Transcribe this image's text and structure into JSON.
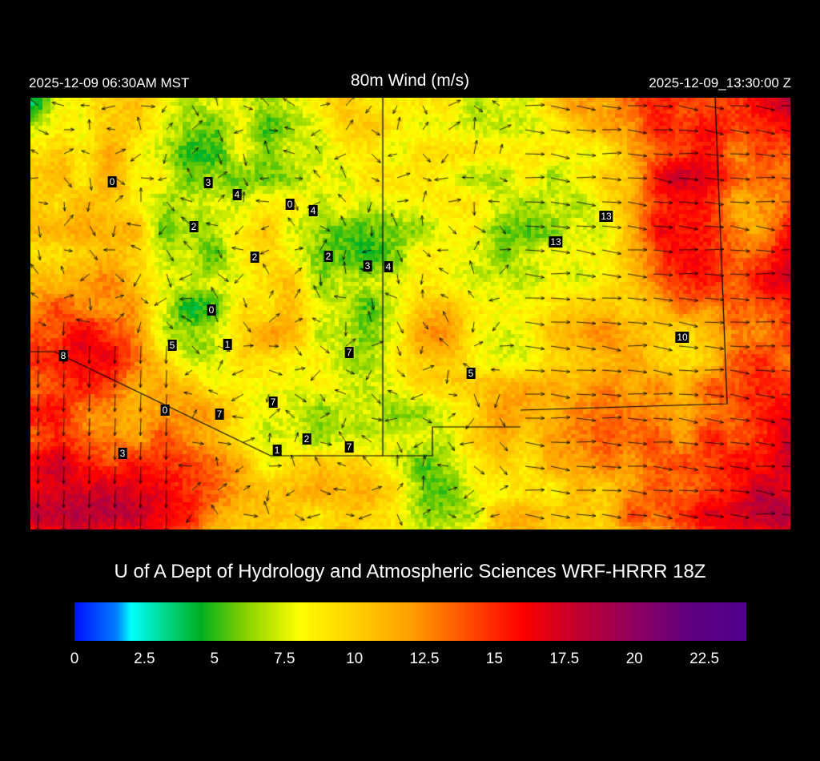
{
  "header": {
    "title": "80m Wind (m/s)",
    "local_time": "2025-12-09 06:30AM MST",
    "utc_time": "2025-12-09_13:30:00 Z"
  },
  "credit": "U of A Dept of Hydrology and Atmospheric Sciences WRF-HRRR 18Z",
  "colorbar": {
    "unit": "m/s",
    "range": [
      0,
      24
    ],
    "ticks": [
      "0",
      "2.5",
      "5",
      "7.5",
      "10",
      "12.5",
      "15",
      "17.5",
      "20",
      "22.5"
    ],
    "stops": [
      {
        "v": 0,
        "c": "#0010ff"
      },
      {
        "v": 1.5,
        "c": "#0080ff"
      },
      {
        "v": 2,
        "c": "#00ffff"
      },
      {
        "v": 3,
        "c": "#00e0a0"
      },
      {
        "v": 4.5,
        "c": "#00b020"
      },
      {
        "v": 6,
        "c": "#80d000"
      },
      {
        "v": 8,
        "c": "#ffff00"
      },
      {
        "v": 10,
        "c": "#ffd000"
      },
      {
        "v": 12,
        "c": "#ffa000"
      },
      {
        "v": 14,
        "c": "#ff5000"
      },
      {
        "v": 16,
        "c": "#ff0000"
      },
      {
        "v": 18,
        "c": "#c00030"
      },
      {
        "v": 20,
        "c": "#900060"
      },
      {
        "v": 22,
        "c": "#600080"
      },
      {
        "v": 24,
        "c": "#500090"
      }
    ]
  },
  "stations": [
    "0",
    "3",
    "4",
    "0",
    "4",
    "2",
    "2",
    "2",
    "3",
    "4",
    "13",
    "13",
    "0",
    "5",
    "1",
    "7",
    "8",
    "10",
    "5",
    "7",
    "0",
    "7",
    "2",
    "1",
    "7",
    "3"
  ]
}
